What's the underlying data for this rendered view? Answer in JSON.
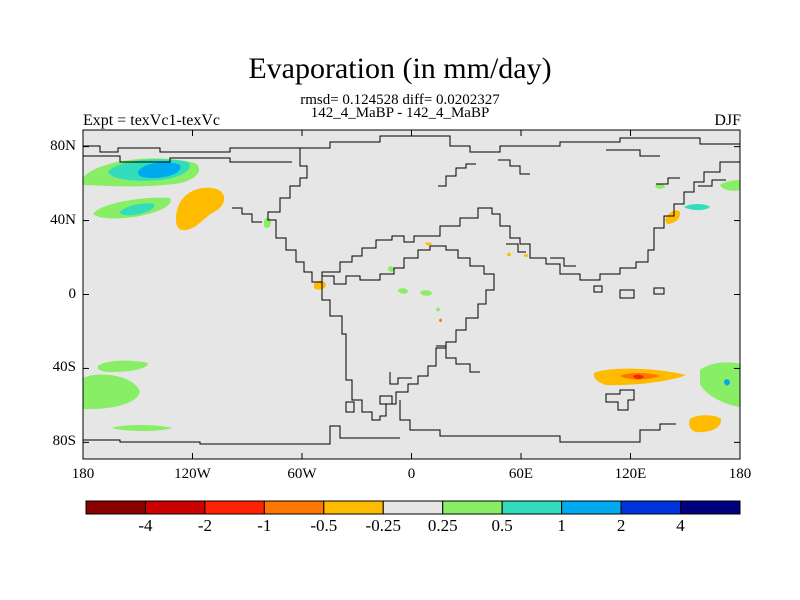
{
  "title": "Evaporation (in mm/day)",
  "stats": "rmsd= 0.124528 diff= 0.0202327",
  "subtitle": "142_4_MaBP - 142_4_MaBP",
  "left_label": "Expt = texVc1-texVc",
  "right_label": "DJF",
  "chart_data": {
    "type": "map-contour",
    "variable": "Evaporation difference",
    "units": "mm/day",
    "season": "DJF",
    "lon_range": [
      -180,
      180
    ],
    "lat_range": [
      -90,
      90
    ],
    "lat_ticks": [
      {
        "label": "80N",
        "value": 80
      },
      {
        "label": "40N",
        "value": 40
      },
      {
        "label": "0",
        "value": 0
      },
      {
        "label": "40S",
        "value": -40
      },
      {
        "label": "80S",
        "value": -80
      }
    ],
    "lon_ticks": [
      {
        "label": "180",
        "value": -180
      },
      {
        "label": "120W",
        "value": -120
      },
      {
        "label": "60W",
        "value": -60
      },
      {
        "label": "0",
        "value": 0
      },
      {
        "label": "60E",
        "value": 60
      },
      {
        "label": "120E",
        "value": 120
      },
      {
        "label": "180",
        "value": 180
      }
    ],
    "colorbar": {
      "labels": [
        "-4",
        "-2",
        "-1",
        "-0.5",
        "-0.25",
        "0.25",
        "0.5",
        "1",
        "2",
        "4"
      ],
      "colors": [
        "#8b0000",
        "#cc0000",
        "#ff2200",
        "#ff7700",
        "#ffbb00",
        "#e6e6e6",
        "#88ee66",
        "#33ddbb",
        "#00aaee",
        "#0033dd",
        "#000080"
      ]
    },
    "background_color": "#e6e6e6"
  }
}
